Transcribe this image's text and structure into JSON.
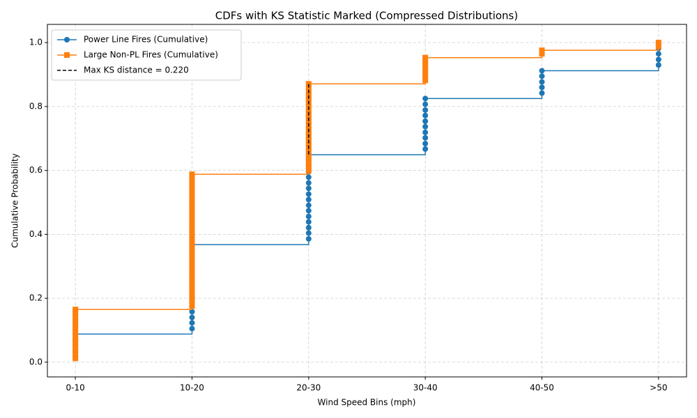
{
  "chart_data": {
    "type": "step",
    "title": "CDFs with KS Statistic Marked (Compressed Distributions)",
    "x_label": "Wind Speed Bins (mph)",
    "y_label": "Cumulative Probability",
    "categories": [
      "0-10",
      "10-20",
      "20-30",
      "30-40",
      "40-50",
      ">50"
    ],
    "xlim": [
      -0.24,
      5.24
    ],
    "ylim": [
      -0.046,
      1.057
    ],
    "yticks": [
      {
        "value": 0,
        "label": "0.0"
      },
      {
        "value": 0.2,
        "label": "0.2"
      },
      {
        "value": 0.4,
        "label": "0.4"
      },
      {
        "value": 0.6,
        "label": "0.6"
      },
      {
        "value": 0.8,
        "label": "0.8"
      },
      {
        "value": 1,
        "label": "1.0"
      }
    ],
    "grid": true,
    "legend": "upper-left",
    "series": [
      {
        "name": "Power Line Fires (Cumulative)",
        "color": "#1f77b4",
        "marker": "circle",
        "x": [
          0,
          0,
          0,
          0,
          0,
          1,
          1,
          1,
          1,
          1,
          1,
          1,
          1,
          1,
          1,
          1,
          1,
          1,
          1,
          1,
          1,
          2,
          2,
          2,
          2,
          2,
          2,
          2,
          2,
          2,
          2,
          2,
          2,
          2,
          2,
          2,
          2,
          3,
          3,
          3,
          3,
          3,
          3,
          3,
          3,
          3,
          3,
          4,
          4,
          4,
          4,
          4,
          5,
          5,
          5,
          5,
          5
        ],
        "values": [
          0.018,
          0.035,
          0.053,
          0.07,
          0.088,
          0.105,
          0.123,
          0.14,
          0.158,
          0.175,
          0.193,
          0.211,
          0.228,
          0.246,
          0.263,
          0.281,
          0.298,
          0.316,
          0.333,
          0.351,
          0.368,
          0.386,
          0.404,
          0.421,
          0.439,
          0.456,
          0.474,
          0.491,
          0.509,
          0.526,
          0.544,
          0.561,
          0.579,
          0.596,
          0.614,
          0.632,
          0.649,
          0.667,
          0.684,
          0.702,
          0.719,
          0.737,
          0.754,
          0.772,
          0.789,
          0.807,
          0.825,
          0.842,
          0.86,
          0.877,
          0.895,
          0.912,
          0.93,
          0.947,
          0.965,
          0.982,
          1
        ]
      },
      {
        "name": "Large Non-PL Fires (Cumulative)",
        "color": "#ff7f0e",
        "marker": "square",
        "x": [
          0,
          0,
          0,
          0,
          0,
          0,
          0,
          0,
          0,
          0,
          0,
          0,
          0,
          0,
          1,
          1,
          1,
          1,
          1,
          1,
          1,
          1,
          1,
          1,
          1,
          1,
          1,
          1,
          1,
          1,
          1,
          1,
          1,
          1,
          1,
          1,
          1,
          1,
          1,
          1,
          1,
          1,
          1,
          1,
          1,
          1,
          1,
          1,
          1,
          1,
          2,
          2,
          2,
          2,
          2,
          2,
          2,
          2,
          2,
          2,
          2,
          2,
          2,
          2,
          2,
          2,
          2,
          2,
          2,
          2,
          2,
          2,
          2,
          2,
          3,
          3,
          3,
          3,
          3,
          3,
          3,
          4,
          4,
          5,
          5
        ],
        "values": [
          0.012,
          0.024,
          0.035,
          0.047,
          0.059,
          0.071,
          0.082,
          0.094,
          0.106,
          0.118,
          0.129,
          0.141,
          0.153,
          0.165,
          0.176,
          0.188,
          0.2,
          0.212,
          0.224,
          0.235,
          0.247,
          0.259,
          0.271,
          0.282,
          0.294,
          0.306,
          0.318,
          0.329,
          0.341,
          0.353,
          0.365,
          0.376,
          0.388,
          0.4,
          0.412,
          0.424,
          0.435,
          0.447,
          0.459,
          0.471,
          0.482,
          0.494,
          0.506,
          0.518,
          0.529,
          0.541,
          0.553,
          0.565,
          0.576,
          0.588,
          0.6,
          0.612,
          0.624,
          0.635,
          0.647,
          0.659,
          0.671,
          0.682,
          0.694,
          0.706,
          0.718,
          0.729,
          0.741,
          0.753,
          0.765,
          0.776,
          0.788,
          0.8,
          0.812,
          0.824,
          0.835,
          0.847,
          0.859,
          0.871,
          0.882,
          0.894,
          0.906,
          0.918,
          0.929,
          0.941,
          0.953,
          0.965,
          0.976,
          0.988,
          1
        ]
      }
    ],
    "ks_line": {
      "name": "Max KS distance = 0.220",
      "color": "#000000",
      "x": 2,
      "values": [
        0.65,
        0.87
      ]
    }
  }
}
